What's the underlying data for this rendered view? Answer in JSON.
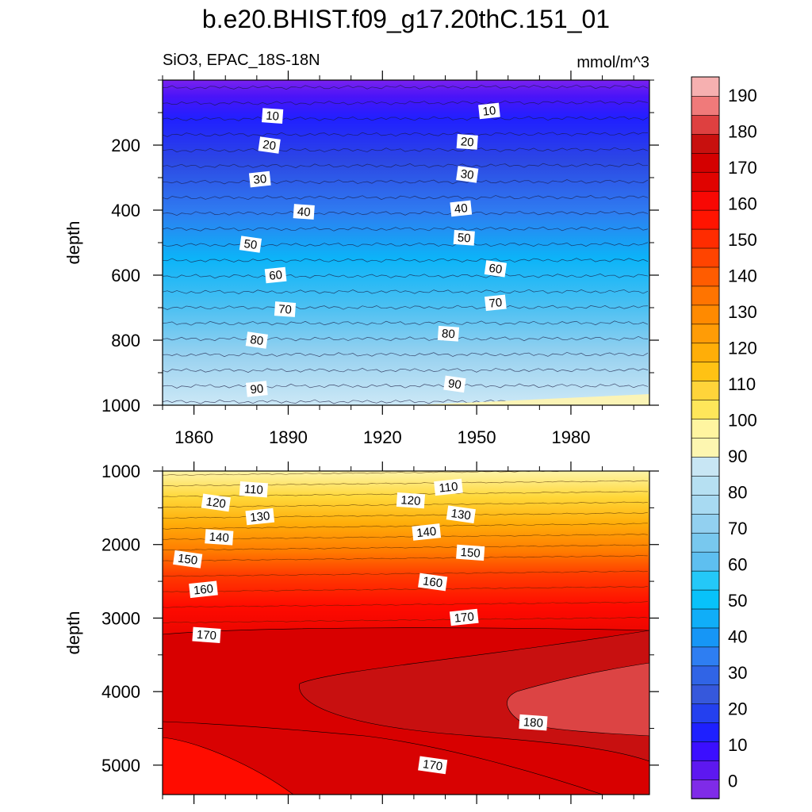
{
  "chart_data": [
    {
      "type": "contour",
      "panel": "top",
      "title": "b.e20.BHIST.f09_g17.20thC.151_01",
      "left_label": "SiO3, EPAC_18S-18N",
      "right_label": "mmol/m^3",
      "xlabel": "",
      "ylabel": "depth",
      "xlim": [
        1850,
        2005
      ],
      "ylim": [
        1000,
        0
      ],
      "xticks": [
        1860,
        1890,
        1920,
        1950,
        1980
      ],
      "yticks": [
        200,
        400,
        600,
        800,
        1000
      ],
      "contour_interval": 5,
      "contour_labels": [
        {
          "year": 1885,
          "depth": 110,
          "value": "10"
        },
        {
          "year": 1954,
          "depth": 95,
          "value": "10"
        },
        {
          "year": 1884,
          "depth": 200,
          "value": "20"
        },
        {
          "year": 1947,
          "depth": 190,
          "value": "20"
        },
        {
          "year": 1881,
          "depth": 305,
          "value": "30"
        },
        {
          "year": 1947,
          "depth": 290,
          "value": "30"
        },
        {
          "year": 1895,
          "depth": 405,
          "value": "40"
        },
        {
          "year": 1945,
          "depth": 395,
          "value": "40"
        },
        {
          "year": 1878,
          "depth": 505,
          "value": "50"
        },
        {
          "year": 1946,
          "depth": 485,
          "value": "50"
        },
        {
          "year": 1886,
          "depth": 600,
          "value": "60"
        },
        {
          "year": 1956,
          "depth": 580,
          "value": "60"
        },
        {
          "year": 1889,
          "depth": 705,
          "value": "70"
        },
        {
          "year": 1956,
          "depth": 685,
          "value": "70"
        },
        {
          "year": 1880,
          "depth": 800,
          "value": "80"
        },
        {
          "year": 1941,
          "depth": 780,
          "value": "80"
        },
        {
          "year": 1880,
          "depth": 950,
          "value": "90"
        },
        {
          "year": 1943,
          "depth": 935,
          "value": "90"
        }
      ]
    },
    {
      "type": "contour",
      "panel": "bottom",
      "xlabel": "",
      "ylabel": "depth",
      "xlim": [
        1850,
        2005
      ],
      "ylim": [
        5400,
        1000
      ],
      "xticks": [
        1860,
        1890,
        1920,
        1950,
        1980
      ],
      "yticks": [
        1000,
        2000,
        3000,
        4000,
        5000
      ],
      "contour_interval": 5,
      "contour_labels": [
        {
          "year": 1879,
          "depth": 1250,
          "value": "110"
        },
        {
          "year": 1941,
          "depth": 1220,
          "value": "110"
        },
        {
          "year": 1867,
          "depth": 1430,
          "value": "120"
        },
        {
          "year": 1929,
          "depth": 1400,
          "value": "120"
        },
        {
          "year": 1881,
          "depth": 1620,
          "value": "130"
        },
        {
          "year": 1945,
          "depth": 1590,
          "value": "130"
        },
        {
          "year": 1868,
          "depth": 1900,
          "value": "140"
        },
        {
          "year": 1934,
          "depth": 1830,
          "value": "140"
        },
        {
          "year": 1858,
          "depth": 2200,
          "value": "150"
        },
        {
          "year": 1948,
          "depth": 2110,
          "value": "150"
        },
        {
          "year": 1863,
          "depth": 2610,
          "value": "160"
        },
        {
          "year": 1936,
          "depth": 2510,
          "value": "160"
        },
        {
          "year": 1864,
          "depth": 3230,
          "value": "170"
        },
        {
          "year": 1946,
          "depth": 2990,
          "value": "170"
        },
        {
          "year": 1936,
          "depth": 5000,
          "value": "170"
        },
        {
          "year": 1968,
          "depth": 4420,
          "value": "180"
        }
      ]
    }
  ],
  "colorbar": {
    "min": -5,
    "max": 195,
    "tick_labels": [
      "0",
      "10",
      "20",
      "30",
      "40",
      "50",
      "60",
      "70",
      "80",
      "90",
      "100",
      "110",
      "120",
      "130",
      "140",
      "150",
      "160",
      "170",
      "180",
      "190"
    ],
    "colors": [
      "#7f2be8",
      "#5d18f0",
      "#3b0fff",
      "#1e20ff",
      "#2440ef",
      "#3658dc",
      "#3064e6",
      "#2e7ef2",
      "#1696f6",
      "#10aef8",
      "#08c2fa",
      "#24c8f8",
      "#5ebff0",
      "#78c8ee",
      "#92d0f0",
      "#a8daf2",
      "#b6e0f2",
      "#c8e6f4",
      "#fdf6b0",
      "#fff5a0",
      "#fee65a",
      "#ffd43a",
      "#ffc214",
      "#ffae08",
      "#ff9c06",
      "#ff8a00",
      "#ff7400",
      "#ff5c00",
      "#ff4400",
      "#ff2c00",
      "#ff1400",
      "#f80804",
      "#e00300",
      "#d40000",
      "#c8100e",
      "#de4040",
      "#f07a7a",
      "#f6b0b0"
    ]
  }
}
